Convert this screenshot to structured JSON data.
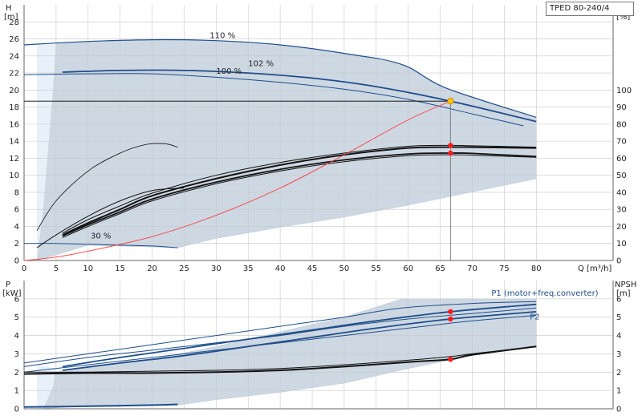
{
  "model": "TPED 80-240/4",
  "colors": {
    "envelope": "#cdd8e3",
    "envelope_edge": "#b8c8d8",
    "lightzone": "#e8f1fa",
    "curve_blue": "#1f4e8c",
    "curve_black": "#111111",
    "system_red": "#ff3b3b",
    "marker_red": "#ff1a1a",
    "marker_yellow": "#ffcc00",
    "grid": "#c8c8c8"
  },
  "chart_data": [
    {
      "type": "line",
      "name": "pump-curves",
      "xlabel": "Q [m³/h]",
      "ylabel_left": [
        "H",
        "[m]"
      ],
      "ylabel_right": [
        "eta",
        "[%]"
      ],
      "xlim": [
        0,
        92
      ],
      "ylim_left": [
        0,
        30
      ],
      "ylim_right": [
        0,
        150
      ],
      "xticks": [
        0,
        5,
        10,
        15,
        20,
        25,
        30,
        35,
        40,
        45,
        50,
        55,
        60,
        65,
        70,
        75,
        80
      ],
      "yticks_left": [
        0,
        2,
        4,
        6,
        8,
        10,
        12,
        14,
        16,
        18,
        20,
        22,
        24,
        26,
        28
      ],
      "yticks_right": [
        0,
        10,
        20,
        30,
        40,
        50,
        60,
        70,
        80,
        90,
        100
      ],
      "labels": [
        {
          "text": "110 %",
          "x": 31,
          "y": 26.1
        },
        {
          "text": "102 %",
          "x": 37,
          "y": 22.8
        },
        {
          "text": "100 %",
          "x": 32,
          "y": 21.9
        },
        {
          "text": "30 %",
          "x": 12,
          "y": 2.6
        }
      ],
      "envelope": [
        [
          2,
          0
        ],
        [
          3,
          6
        ],
        [
          5,
          25.4
        ],
        [
          10,
          25.7
        ],
        [
          20,
          25.9
        ],
        [
          30,
          25.8
        ],
        [
          40,
          25.3
        ],
        [
          50,
          24.3
        ],
        [
          59,
          23.0
        ],
        [
          66,
          20.2
        ],
        [
          80,
          16.8
        ],
        [
          80,
          9.6
        ],
        [
          60,
          6.5
        ],
        [
          50,
          5.1
        ],
        [
          40,
          3.9
        ],
        [
          30,
          2.6
        ],
        [
          24,
          1.5
        ],
        [
          10,
          1.8
        ],
        [
          2,
          0
        ]
      ],
      "lightzone": [
        [
          2,
          0
        ],
        [
          2,
          25.3
        ],
        [
          5,
          25.4
        ],
        [
          4.5,
          20
        ],
        [
          3,
          6
        ],
        [
          2,
          0
        ]
      ],
      "head_series": [
        {
          "name": "110 %",
          "color": "blue",
          "width": 1.2,
          "points": [
            [
              0,
              25.3
            ],
            [
              10,
              25.7
            ],
            [
              20,
              25.9
            ],
            [
              30,
              25.8
            ],
            [
              40,
              25.3
            ],
            [
              50,
              24.3
            ],
            [
              59,
              23.0
            ],
            [
              66,
              20.2
            ],
            [
              80,
              16.8
            ]
          ]
        },
        {
          "name": "102 %",
          "color": "blue",
          "width": 1.8,
          "points": [
            [
              6,
              22.1
            ],
            [
              15,
              22.3
            ],
            [
              25,
              22.3
            ],
            [
              35,
              22.0
            ],
            [
              45,
              21.4
            ],
            [
              55,
              20.4
            ],
            [
              66.6,
              18.7
            ],
            [
              80,
              16.3
            ]
          ]
        },
        {
          "name": "100 %",
          "color": "blue",
          "width": 1.0,
          "points": [
            [
              0,
              21.8
            ],
            [
              10,
              21.9
            ],
            [
              20,
              21.9
            ],
            [
              30,
              21.5
            ],
            [
              40,
              20.9
            ],
            [
              50,
              20.1
            ],
            [
              60,
              18.9
            ],
            [
              70,
              17.2
            ],
            [
              78,
              15.8
            ]
          ]
        },
        {
          "name": "30 %",
          "color": "blue",
          "width": 1.0,
          "points": [
            [
              0,
              2.0
            ],
            [
              5,
              2.0
            ],
            [
              10,
              1.9
            ],
            [
              15,
              1.8
            ],
            [
              20,
              1.7
            ],
            [
              24,
              1.5
            ]
          ]
        },
        {
          "name": "",
          "color": "black",
          "width": 0.8,
          "points": [
            [
              2,
              3.5
            ],
            [
              5,
              7
            ],
            [
              10,
              10.5
            ],
            [
              15,
              12.6
            ],
            [
              19,
              13.6
            ],
            [
              22,
              13.7
            ],
            [
              24,
              13.3
            ]
          ]
        }
      ],
      "eta_series": [
        {
          "color": "black",
          "width": 2.0,
          "points": [
            [
              6,
              15
            ],
            [
              10,
              22
            ],
            [
              15,
              30
            ],
            [
              20,
              38
            ],
            [
              30,
              48
            ],
            [
              40,
              56
            ],
            [
              50,
              62
            ],
            [
              60,
              66
            ],
            [
              66.6,
              66.5
            ],
            [
              70,
              66.5
            ],
            [
              80,
              66
            ]
          ]
        },
        {
          "color": "black",
          "width": 1.0,
          "points": [
            [
              6,
              16
            ],
            [
              10,
              24
            ],
            [
              15,
              32
            ],
            [
              20,
              39.5
            ],
            [
              30,
              50
            ],
            [
              40,
              57.5
            ],
            [
              50,
              63
            ],
            [
              60,
              67
            ],
            [
              66.6,
              67.5
            ],
            [
              70,
              67.3
            ],
            [
              80,
              66.5
            ]
          ]
        },
        {
          "color": "black",
          "width": 1.8,
          "points": [
            [
              6,
              14.5
            ],
            [
              10,
              21
            ],
            [
              15,
              28.5
            ],
            [
              20,
              36
            ],
            [
              30,
              46
            ],
            [
              40,
              53.5
            ],
            [
              50,
              59
            ],
            [
              60,
              62.5
            ],
            [
              66.6,
              63
            ],
            [
              70,
              62.8
            ],
            [
              80,
              61
            ]
          ]
        },
        {
          "color": "black",
          "width": 1.0,
          "points": [
            [
              6,
              13.5
            ],
            [
              10,
              20
            ],
            [
              15,
              27.5
            ],
            [
              20,
              35
            ],
            [
              30,
              45
            ],
            [
              40,
              52.5
            ],
            [
              50,
              58
            ],
            [
              60,
              61.5
            ],
            [
              66.6,
              62
            ],
            [
              70,
              61.8
            ],
            [
              80,
              60.5
            ]
          ]
        },
        {
          "color": "black",
          "width": 1.0,
          "points": [
            [
              2,
              7.5
            ],
            [
              5,
              15
            ],
            [
              10,
              26
            ],
            [
              15,
              35
            ],
            [
              20,
              41
            ],
            [
              25,
              42.5
            ]
          ]
        }
      ],
      "system_curve": [
        [
          0,
          0
        ],
        [
          5,
          0.4
        ],
        [
          10,
          1.1
        ],
        [
          20,
          2.8
        ],
        [
          30,
          5.3
        ],
        [
          40,
          8.5
        ],
        [
          50,
          12.4
        ],
        [
          60,
          16.5
        ],
        [
          66.6,
          18.7
        ]
      ],
      "duty_point": {
        "q": 66.6,
        "h": 18.7,
        "eta": [
          67.5,
          63
        ]
      }
    },
    {
      "type": "line",
      "name": "power-npsh",
      "xlabel": "",
      "ylabel_left": [
        "P",
        "[kW]"
      ],
      "ylabel_right": [
        "NPSH",
        "[m]"
      ],
      "xlim": [
        0,
        92
      ],
      "ylim_left": [
        0,
        7
      ],
      "ylim_right": [
        0,
        7
      ],
      "yticks_left": [
        0,
        1,
        2,
        3,
        4,
        5,
        6
      ],
      "yticks_right": [
        0,
        1,
        2,
        3,
        4,
        5,
        6
      ],
      "labels": [
        {
          "text": "P1 (motor+freq.converter)",
          "x": 73,
          "y": 6.3
        },
        {
          "text": "P2",
          "x": 79,
          "y": 5.0
        }
      ],
      "envelope": [
        [
          3,
          0
        ],
        [
          5,
          2.0
        ],
        [
          10,
          2.3
        ],
        [
          20,
          2.7
        ],
        [
          30,
          3.4
        ],
        [
          40,
          4.2
        ],
        [
          50,
          5.0
        ],
        [
          59,
          6.0
        ],
        [
          70,
          6.0
        ],
        [
          80,
          6.0
        ],
        [
          80,
          3.4
        ],
        [
          70,
          2.9
        ],
        [
          60,
          2.2
        ],
        [
          50,
          1.4
        ],
        [
          40,
          0.9
        ],
        [
          30,
          0.5
        ],
        [
          24,
          0.2
        ],
        [
          10,
          0.2
        ],
        [
          3,
          0
        ]
      ],
      "lightzone": [
        [
          2,
          0
        ],
        [
          2,
          2.4
        ],
        [
          5,
          2.2
        ],
        [
          4.5,
          1.2
        ],
        [
          3,
          0
        ],
        [
          2,
          0
        ]
      ],
      "power_series": [
        {
          "name": "P1",
          "color": "blue",
          "width": 1.0,
          "points": [
            [
              0,
              2.5
            ],
            [
              10,
              3.0
            ],
            [
              20,
              3.5
            ],
            [
              30,
              4.0
            ],
            [
              40,
              4.5
            ],
            [
              50,
              5.0
            ],
            [
              59,
              5.5
            ],
            [
              70,
              5.75
            ],
            [
              80,
              5.85
            ]
          ]
        },
        {
          "name": "",
          "color": "blue",
          "width": 1.8,
          "points": [
            [
              6,
              2.3
            ],
            [
              15,
              2.8
            ],
            [
              25,
              3.3
            ],
            [
              35,
              3.8
            ],
            [
              45,
              4.3
            ],
            [
              55,
              4.8
            ],
            [
              66.6,
              5.3
            ],
            [
              80,
              5.7
            ]
          ]
        },
        {
          "name": "",
          "color": "blue",
          "width": 1.0,
          "points": [
            [
              0,
              2.3
            ],
            [
              10,
              2.8
            ],
            [
              20,
              3.2
            ],
            [
              30,
              3.6
            ],
            [
              40,
              4.0
            ],
            [
              50,
              4.5
            ],
            [
              60,
              4.9
            ],
            [
              70,
              5.2
            ],
            [
              80,
              5.5
            ]
          ]
        },
        {
          "name": "P2",
          "color": "blue",
          "width": 1.8,
          "points": [
            [
              6,
              2.1
            ],
            [
              15,
              2.5
            ],
            [
              25,
              2.9
            ],
            [
              35,
              3.4
            ],
            [
              45,
              3.9
            ],
            [
              55,
              4.4
            ],
            [
              66.6,
              4.9
            ],
            [
              80,
              5.3
            ]
          ]
        },
        {
          "name": "",
          "color": "blue",
          "width": 1.0,
          "points": [
            [
              0,
              2.0
            ],
            [
              10,
              2.4
            ],
            [
              20,
              2.8
            ],
            [
              30,
              3.2
            ],
            [
              40,
              3.6
            ],
            [
              50,
              4.0
            ],
            [
              60,
              4.4
            ],
            [
              70,
              4.8
            ],
            [
              80,
              5.1
            ]
          ]
        },
        {
          "name": "",
          "color": "blue",
          "width": 2.0,
          "points": [
            [
              0,
              0.1
            ],
            [
              10,
              0.14
            ],
            [
              20,
              0.2
            ],
            [
              24,
              0.24
            ]
          ]
        }
      ],
      "npsh_series": [
        {
          "color": "black",
          "width": 1.0,
          "points": [
            [
              0,
              2.0
            ],
            [
              10,
              2.0
            ],
            [
              20,
              2.05
            ],
            [
              30,
              2.1
            ],
            [
              40,
              2.2
            ],
            [
              50,
              2.4
            ],
            [
              60,
              2.65
            ],
            [
              66.6,
              2.85
            ],
            [
              70,
              3.0
            ],
            [
              80,
              3.4
            ]
          ]
        },
        {
          "color": "black",
          "width": 2.0,
          "points": [
            [
              0,
              1.9
            ],
            [
              10,
              1.95
            ],
            [
              20,
              1.95
            ],
            [
              30,
              2.0
            ],
            [
              40,
              2.1
            ],
            [
              50,
              2.3
            ],
            [
              60,
              2.55
            ],
            [
              66.6,
              2.7
            ],
            [
              70,
              2.95
            ],
            [
              80,
              3.4
            ]
          ]
        }
      ],
      "duty_point": {
        "q": 66.6,
        "p": [
          5.3,
          4.9
        ],
        "npsh": 2.7
      }
    }
  ]
}
